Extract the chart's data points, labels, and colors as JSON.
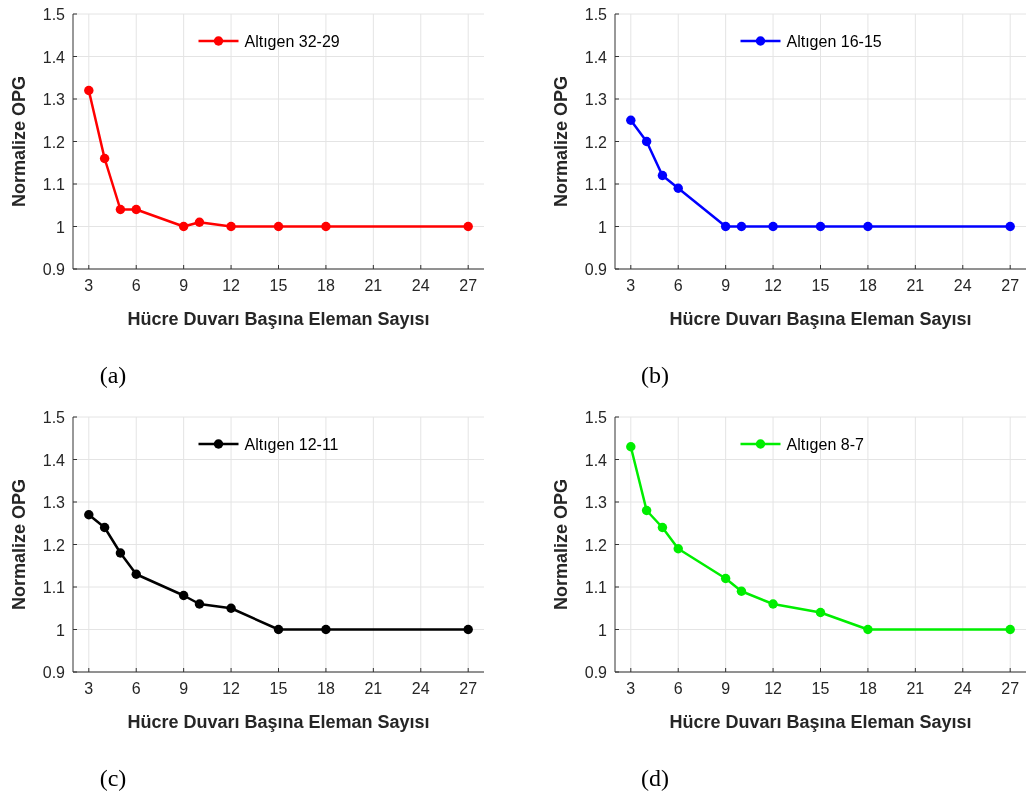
{
  "chart_data": [
    {
      "type": "line",
      "x": [
        3,
        4,
        5,
        6,
        9,
        10,
        12,
        15,
        18,
        27
      ],
      "series": [
        {
          "name": "Altıgen 32-29",
          "color": "#ff0000",
          "values": [
            1.32,
            1.16,
            1.04,
            1.04,
            1.0,
            1.01,
            1.0,
            1.0,
            1.0,
            1.0
          ]
        }
      ],
      "xlabel": "Hücre Duvarı Başına Eleman Sayısı",
      "ylabel": "Normalize OPG",
      "xlim": [
        2,
        28
      ],
      "xticks": [
        3,
        6,
        9,
        12,
        15,
        18,
        21,
        24,
        27
      ],
      "ylim": [
        0.9,
        1.5
      ],
      "yticks": [
        {
          "value": 0.9,
          "label": "0.9"
        },
        {
          "value": 1,
          "label": "1"
        },
        {
          "value": 1.1,
          "label": "1.1"
        },
        {
          "value": 1.2,
          "label": "1.2"
        },
        {
          "value": 1.3,
          "label": "1.3"
        },
        {
          "value": 1.4,
          "label": "1.4"
        },
        {
          "value": 1.5,
          "label": "1.5"
        }
      ],
      "grid": true,
      "legend": "top",
      "marker": "circle",
      "annotations": [
        "(a)"
      ]
    },
    {
      "type": "line",
      "x": [
        3,
        4,
        5,
        6,
        9,
        10,
        12,
        15,
        18,
        27
      ],
      "series": [
        {
          "name": "Altıgen 16-15",
          "color": "#0000ff",
          "values": [
            1.25,
            1.2,
            1.12,
            1.09,
            1.0,
            1.0,
            1.0,
            1.0,
            1.0,
            1.0
          ]
        }
      ],
      "xlabel": "Hücre Duvarı Başına Eleman Sayısı",
      "ylabel": "Normalize OPG",
      "xlim": [
        2,
        28
      ],
      "xticks": [
        3,
        6,
        9,
        12,
        15,
        18,
        21,
        24,
        27
      ],
      "ylim": [
        0.9,
        1.5
      ],
      "yticks": [
        {
          "value": 0.9,
          "label": "0.9"
        },
        {
          "value": 1,
          "label": "1"
        },
        {
          "value": 1.1,
          "label": "1.1"
        },
        {
          "value": 1.2,
          "label": "1.2"
        },
        {
          "value": 1.3,
          "label": "1.3"
        },
        {
          "value": 1.4,
          "label": "1.4"
        },
        {
          "value": 1.5,
          "label": "1.5"
        }
      ],
      "grid": true,
      "legend": "top",
      "marker": "circle",
      "annotations": [
        "(b)"
      ]
    },
    {
      "type": "line",
      "x": [
        3,
        4,
        5,
        6,
        9,
        10,
        12,
        15,
        18,
        27
      ],
      "series": [
        {
          "name": "Altıgen 12-11",
          "color": "#000000",
          "values": [
            1.27,
            1.24,
            1.18,
            1.13,
            1.08,
            1.06,
            1.05,
            1.0,
            1.0,
            1.0
          ]
        }
      ],
      "xlabel": "Hücre Duvarı Başına Eleman Sayısı",
      "ylabel": "Normalize OPG",
      "xlim": [
        2,
        28
      ],
      "xticks": [
        3,
        6,
        9,
        12,
        15,
        18,
        21,
        24,
        27
      ],
      "ylim": [
        0.9,
        1.5
      ],
      "yticks": [
        {
          "value": 0.9,
          "label": "0.9"
        },
        {
          "value": 1,
          "label": "1"
        },
        {
          "value": 1.1,
          "label": "1.1"
        },
        {
          "value": 1.2,
          "label": "1.2"
        },
        {
          "value": 1.3,
          "label": "1.3"
        },
        {
          "value": 1.4,
          "label": "1.4"
        },
        {
          "value": 1.5,
          "label": "1.5"
        }
      ],
      "grid": true,
      "legend": "top",
      "marker": "circle",
      "annotations": [
        "(c)"
      ]
    },
    {
      "type": "line",
      "x": [
        3,
        4,
        5,
        6,
        9,
        10,
        12,
        15,
        18,
        27
      ],
      "series": [
        {
          "name": "Altıgen 8-7",
          "color": "#00ee00",
          "values": [
            1.43,
            1.28,
            1.24,
            1.19,
            1.12,
            1.09,
            1.06,
            1.04,
            1.0,
            1.0
          ]
        }
      ],
      "xlabel": "Hücre Duvarı Başına Eleman Sayısı",
      "ylabel": "Normalize OPG",
      "xlim": [
        2,
        28
      ],
      "xticks": [
        3,
        6,
        9,
        12,
        15,
        18,
        21,
        24,
        27
      ],
      "ylim": [
        0.9,
        1.5
      ],
      "yticks": [
        {
          "value": 0.9,
          "label": "0.9"
        },
        {
          "value": 1,
          "label": "1"
        },
        {
          "value": 1.1,
          "label": "1.1"
        },
        {
          "value": 1.2,
          "label": "1.2"
        },
        {
          "value": 1.3,
          "label": "1.3"
        },
        {
          "value": 1.4,
          "label": "1.4"
        },
        {
          "value": 1.5,
          "label": "1.5"
        }
      ],
      "grid": true,
      "legend": "top",
      "marker": "circle",
      "annotations": [
        "(d)"
      ]
    }
  ]
}
